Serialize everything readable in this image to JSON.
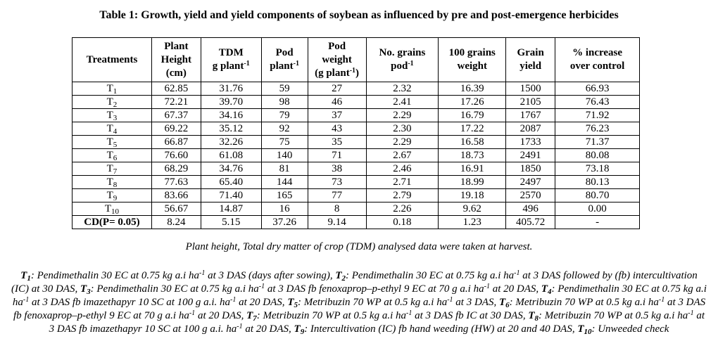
{
  "title": "Table 1: Growth, yield and yield components of soybean as influenced by pre and post-emergence herbicides",
  "table": {
    "headers": {
      "treatments": "Treatments",
      "plant_height": [
        "Plant",
        "Height",
        "(cm)"
      ],
      "tdm": {
        "line1": "TDM",
        "line2": "g plant",
        "sup": "-1"
      },
      "pod": {
        "line1": "Pod",
        "line2": "plant",
        "sup": "-1"
      },
      "pod_weight": {
        "line1": "Pod",
        "line2": "weight",
        "line3": "(g plant",
        "sup": "-1",
        "tail": ")"
      },
      "grains": {
        "line1": "No. grains",
        "line2": "pod",
        "sup": "-1"
      },
      "grains100": [
        "100 grains",
        "weight"
      ],
      "grain_yield": [
        "Grain",
        "yield"
      ],
      "increase": [
        "% increase",
        "over control"
      ]
    },
    "rows": [
      {
        "t": "T",
        "sub": "1",
        "v": [
          "62.85",
          "31.76",
          "59",
          "27",
          "2.32",
          "16.39",
          "1500",
          "66.93"
        ]
      },
      {
        "t": "T",
        "sub": "2",
        "v": [
          "72.21",
          "39.70",
          "98",
          "46",
          "2.41",
          "17.26",
          "2105",
          "76.43"
        ]
      },
      {
        "t": "T",
        "sub": "3",
        "v": [
          "67.37",
          "34.16",
          "79",
          "37",
          "2.29",
          "16.79",
          "1767",
          "71.92"
        ]
      },
      {
        "t": "T",
        "sub": "4",
        "v": [
          "69.22",
          "35.12",
          "92",
          "43",
          "2.30",
          "17.22",
          "2087",
          "76.23"
        ]
      },
      {
        "t": "T",
        "sub": "5",
        "v": [
          "66.87",
          "32.26",
          "75",
          "35",
          "2.29",
          "16.58",
          "1733",
          "71.37"
        ]
      },
      {
        "t": "T",
        "sub": "6",
        "v": [
          "76.60",
          "61.08",
          "140",
          "71",
          "2.67",
          "18.73",
          "2491",
          "80.08"
        ]
      },
      {
        "t": "T",
        "sub": "7",
        "v": [
          "68.29",
          "34.76",
          "81",
          "38",
          "2.46",
          "16.91",
          "1850",
          "73.18"
        ]
      },
      {
        "t": "T",
        "sub": "8",
        "v": [
          "77.63",
          "65.40",
          "144",
          "73",
          "2.71",
          "18.99",
          "2497",
          "80.13"
        ]
      },
      {
        "t": "T",
        "sub": "9",
        "v": [
          "83.66",
          "71.40",
          "165",
          "77",
          "2.79",
          "19.18",
          "2570",
          "80.70"
        ]
      },
      {
        "t": "T",
        "sub": "10",
        "v": [
          "56.67",
          "14.87",
          "16",
          "8",
          "2.26",
          "9.62",
          "496",
          "0.00"
        ]
      }
    ],
    "cd": {
      "label": "CD(P= 0.05)",
      "v": [
        "8.24",
        "5.15",
        "37.26",
        "9.14",
        "0.18",
        "1.23",
        "405.72",
        "-"
      ]
    }
  },
  "caption": "Plant height, Total dry matter of crop (TDM) analysed data were taken at harvest.",
  "footnote": [
    {
      "b": "T",
      "bs": "1",
      "t": ": Pendimethalin 30 EC at 0.75 kg a.i ha",
      "s": "-1",
      "r": " at 3 DAS (days after sowing), "
    },
    {
      "b": "T",
      "bs": "2",
      "t": ": Pendimethalin 30 EC at 0.75 kg a.i ha",
      "s": "-1",
      "r": " at 3 DAS followed by (fb) intercultivation (IC) at 30 DAS, "
    },
    {
      "b": "T",
      "bs": "3",
      "t": ": Pendimethalin 30 EC at 0.75 kg a.i ha",
      "s": "-1",
      "r": " at 3 DAS fb fenoxaprop–p-ethyl 9 EC at 70 g a.i ha",
      "s2": "-1",
      "r2": " at 20 DAS, "
    },
    {
      "b": "T",
      "bs": "4",
      "t": ": Pendimethalin 30 EC at 0.75 kg a.i ha",
      "s": "-1",
      "r": " at 3 DAS fb imazethapyr 10 SC at 100 g a.i. ha",
      "s2": "-1",
      "r2": " at 20 DAS, "
    },
    {
      "b": "T",
      "bs": "5",
      "t": ": Metribuzin 70 WP at 0.5 kg a.i ha",
      "s": "-1",
      "r": " at 3 DAS, "
    },
    {
      "b": "T",
      "bs": "6",
      "t": ": Metribuzin 70 WP at 0.5 kg a.i ha",
      "s": "-1",
      "r": " at 3 DAS fb fenoxaprop–p-ethyl 9 EC at 70 g a.i ha",
      "s2": "-1",
      "r2": " at 20 DAS, "
    },
    {
      "b": "T",
      "bs": "7",
      "t": ": Metribuzin 70 WP at 0.5 kg a.i ha",
      "s": "-1",
      "r": " at 3 DAS fb IC at 30 DAS, "
    },
    {
      "b": "T",
      "bs": "8",
      "t": ": Metribuzin 70 WP at 0.5 kg a.i ha",
      "s": "-1",
      "r": " at 3 DAS fb imazethapyr 10 SC at 100 g a.i. ha",
      "s2": "-1",
      "r2": " at 20 DAS, "
    },
    {
      "b": "T",
      "bs": "9",
      "t": ": Intercultivation (IC) fb hand weeding (HW) at 20 and 40 DAS, "
    },
    {
      "b": "T",
      "bs": "10",
      "t": ": Unweeded check"
    }
  ]
}
